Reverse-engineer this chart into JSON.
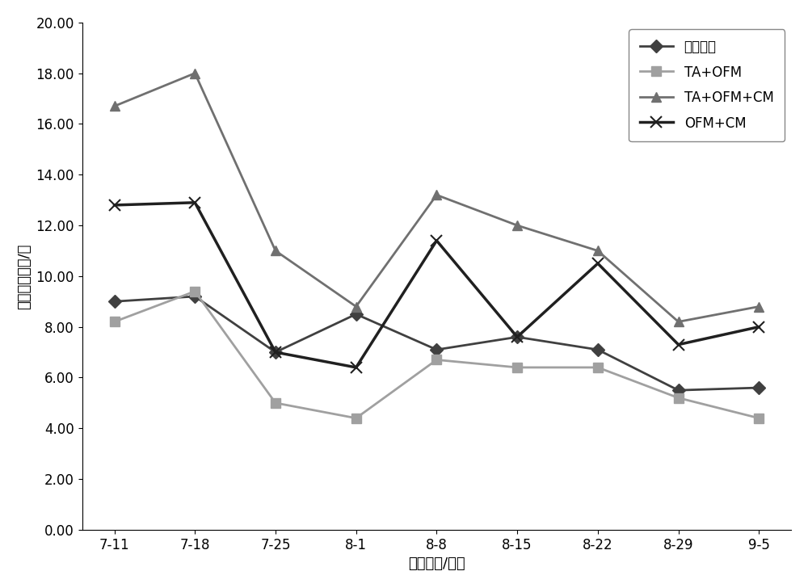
{
  "x_labels": [
    "7-11",
    "7-18",
    "7-25",
    "8-1",
    "8-8",
    "8-15",
    "8-22",
    "8-29",
    "9-5"
  ],
  "series": {
    "单独诱芯": {
      "values": [
        9.0,
        9.2,
        7.0,
        8.5,
        7.1,
        7.6,
        7.1,
        5.5,
        5.6
      ],
      "color": "#404040",
      "marker": "D",
      "linewidth": 2.0,
      "markersize": 8
    },
    "TA+OFM": {
      "values": [
        8.2,
        9.4,
        5.0,
        4.4,
        6.7,
        6.4,
        6.4,
        5.2,
        4.4
      ],
      "color": "#a0a0a0",
      "marker": "s",
      "linewidth": 2.0,
      "markersize": 8
    },
    "TA+OFM+CM": {
      "values": [
        16.7,
        18.0,
        11.0,
        8.8,
        13.2,
        12.0,
        11.0,
        8.2,
        8.8
      ],
      "color": "#707070",
      "marker": "^",
      "linewidth": 2.0,
      "markersize": 8
    },
    "OFM+CM": {
      "values": [
        12.8,
        12.9,
        7.0,
        6.4,
        11.4,
        7.6,
        10.5,
        7.3,
        8.0
      ],
      "color": "#202020",
      "marker": "x",
      "linewidth": 2.5,
      "markersize": 10
    }
  },
  "xlabel": "日期（月/日）",
  "ylabel": "日平均诱蛾量/头",
  "ylim": [
    0.0,
    20.0
  ],
  "yticks": [
    0.0,
    2.0,
    4.0,
    6.0,
    8.0,
    10.0,
    12.0,
    14.0,
    16.0,
    18.0,
    20.0
  ],
  "background_color": "#ffffff",
  "legend_order": [
    "单独诱芯",
    "TA+OFM",
    "TA+OFM+CM",
    "OFM+CM"
  ]
}
